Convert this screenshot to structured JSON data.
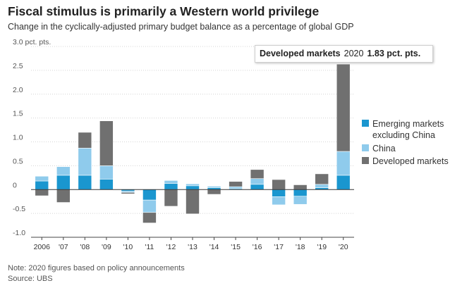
{
  "header": {
    "title": "Fiscal stimulus is primarily a Western world privilege",
    "subtitle": "Change in the cyclically-adjusted primary budget balance as a percentage of global GDP"
  },
  "tooltip": {
    "series": "Developed markets",
    "year": "2020",
    "value": "1.83 pct. pts."
  },
  "footer": {
    "note": "Note: 2020 figures based on policy announcements",
    "source": "Source: UBS"
  },
  "chart_data": {
    "type": "bar",
    "stacked": true,
    "categories": [
      "2006",
      "'07",
      "'08",
      "'09",
      "'10",
      "'11",
      "'12",
      "'13",
      "'14",
      "'15",
      "'16",
      "'17",
      "'18",
      "'19",
      "'20"
    ],
    "series": [
      {
        "name": "Emerging markets excluding China",
        "color": "#1a96cf",
        "values": [
          0.18,
          0.3,
          0.3,
          0.22,
          -0.03,
          -0.22,
          0.13,
          0.08,
          0.04,
          0.02,
          0.11,
          -0.15,
          -0.14,
          0.04,
          0.3
        ]
      },
      {
        "name": "China",
        "color": "#8fcbec",
        "values": [
          0.1,
          0.18,
          0.57,
          0.28,
          -0.03,
          -0.26,
          0.06,
          0.04,
          0.03,
          0.04,
          0.12,
          -0.17,
          -0.17,
          0.07,
          0.5
        ]
      },
      {
        "name": "Developed markets",
        "color": "#707070",
        "values": [
          -0.13,
          -0.27,
          0.33,
          0.94,
          -0.03,
          -0.22,
          -0.35,
          -0.51,
          -0.1,
          0.11,
          0.19,
          0.21,
          0.1,
          0.22,
          1.83
        ]
      }
    ],
    "ytick_labels": [
      "-1.0",
      "-0.5",
      "0",
      "0.5",
      "1.0",
      "1.5",
      "2.0",
      "2.5",
      "3.0 pct. pts."
    ],
    "ylim": [
      -1.0,
      3.0
    ],
    "grid": true,
    "legend_position": "right"
  }
}
